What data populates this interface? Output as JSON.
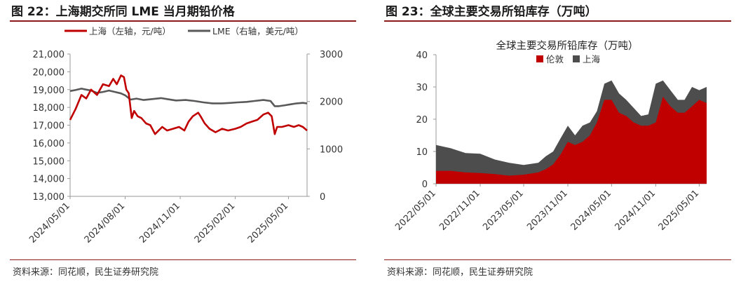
{
  "left": {
    "title": "图 22：上海期交所同 LME 当月期铅价格",
    "source": "资料来源：同花顺，民生证券研究院"
  },
  "right": {
    "title": "图 23：全球主要交易所铅库存（万吨）",
    "source": "资料来源：同花顺，民生证券研究院"
  },
  "colors": {
    "shanghai": "#c00000",
    "lme": "#595959",
    "london": "#c00000",
    "shfe_stock": "#4d4d4d",
    "rule": "#8b1a1a"
  },
  "chart_data": [
    {
      "type": "line",
      "legend_placement": "top",
      "grid": false,
      "yleft": {
        "ticks": [
          "21,000",
          "20,000",
          "19,000",
          "18,000",
          "17,000",
          "16,000",
          "15,000",
          "14,000",
          "13,000"
        ],
        "range": [
          13000,
          21000
        ]
      },
      "yright": {
        "ticks": [
          "3000",
          "2000",
          "1000",
          "0"
        ],
        "range": [
          0,
          3000
        ]
      },
      "xticks": [
        "2024/05/01",
        "2024/08/01",
        "2024/11/01",
        "2025/02/01",
        "2025/05/01"
      ],
      "xrange": [
        "2024/05/01",
        "2025/06/01"
      ],
      "series": [
        {
          "name": "上海（左轴，元/吨）",
          "axis": "left",
          "points": [
            [
              "2024/05/01",
              17300
            ],
            [
              "2024/05/10",
              17900
            ],
            [
              "2024/05/20",
              18700
            ],
            [
              "2024/05/28",
              18500
            ],
            [
              "2024/06/05",
              19000
            ],
            [
              "2024/06/15",
              18700
            ],
            [
              "2024/06/25",
              19300
            ],
            [
              "2024/07/05",
              19200
            ],
            [
              "2024/07/12",
              19600
            ],
            [
              "2024/07/18",
              19300
            ],
            [
              "2024/07/25",
              19800
            ],
            [
              "2024/07/30",
              19700
            ],
            [
              "2024/08/03",
              19000
            ],
            [
              "2024/08/07",
              18800
            ],
            [
              "2024/08/12",
              17400
            ],
            [
              "2024/08/16",
              17800
            ],
            [
              "2024/08/22",
              17500
            ],
            [
              "2024/08/28",
              17400
            ],
            [
              "2024/09/05",
              17100
            ],
            [
              "2024/09/12",
              17000
            ],
            [
              "2024/09/20",
              16500
            ],
            [
              "2024/09/26",
              16700
            ],
            [
              "2024/10/02",
              16900
            ],
            [
              "2024/10/10",
              16700
            ],
            [
              "2024/10/20",
              16800
            ],
            [
              "2024/10/30",
              16900
            ],
            [
              "2024/11/08",
              16700
            ],
            [
              "2024/11/15",
              17200
            ],
            [
              "2024/11/22",
              17500
            ],
            [
              "2024/12/01",
              17700
            ],
            [
              "2024/12/05",
              17500
            ],
            [
              "2024/12/12",
              17100
            ],
            [
              "2024/12/20",
              16800
            ],
            [
              "2024/12/30",
              16600
            ],
            [
              "2025/01/10",
              16800
            ],
            [
              "2025/01/20",
              16700
            ],
            [
              "2025/02/01",
              16800
            ],
            [
              "2025/02/10",
              16900
            ],
            [
              "2025/02/20",
              17100
            ],
            [
              "2025/03/01",
              17200
            ],
            [
              "2025/03/10",
              17300
            ],
            [
              "2025/03/20",
              17600
            ],
            [
              "2025/03/28",
              17700
            ],
            [
              "2025/04/03",
              17500
            ],
            [
              "2025/04/08",
              16500
            ],
            [
              "2025/04/12",
              16900
            ],
            [
              "2025/04/20",
              16900
            ],
            [
              "2025/05/01",
              17000
            ],
            [
              "2025/05/10",
              16900
            ],
            [
              "2025/05/18",
              17000
            ],
            [
              "2025/05/25",
              16900
            ],
            [
              "2025/06/01",
              16700
            ]
          ]
        },
        {
          "name": "LME（右轴，美元/吨）",
          "axis": "right",
          "points": [
            [
              "2024/05/01",
              2220
            ],
            [
              "2024/05/10",
              2240
            ],
            [
              "2024/05/20",
              2270
            ],
            [
              "2024/05/28",
              2250
            ],
            [
              "2024/06/05",
              2230
            ],
            [
              "2024/06/15",
              2180
            ],
            [
              "2024/06/25",
              2200
            ],
            [
              "2024/07/05",
              2230
            ],
            [
              "2024/07/15",
              2200
            ],
            [
              "2024/07/25",
              2170
            ],
            [
              "2024/08/01",
              2130
            ],
            [
              "2024/08/10",
              2040
            ],
            [
              "2024/08/20",
              2060
            ],
            [
              "2024/09/01",
              2030
            ],
            [
              "2024/09/15",
              2050
            ],
            [
              "2024/09/30",
              2070
            ],
            [
              "2024/10/10",
              2050
            ],
            [
              "2024/10/25",
              2020
            ],
            [
              "2024/11/10",
              2030
            ],
            [
              "2024/11/25",
              2010
            ],
            [
              "2024/12/10",
              1980
            ],
            [
              "2024/12/25",
              1960
            ],
            [
              "2025/01/10",
              1960
            ],
            [
              "2025/01/25",
              1970
            ],
            [
              "2025/02/05",
              1980
            ],
            [
              "2025/02/20",
              1990
            ],
            [
              "2025/03/05",
              2010
            ],
            [
              "2025/03/20",
              2030
            ],
            [
              "2025/04/01",
              2010
            ],
            [
              "2025/04/08",
              1900
            ],
            [
              "2025/04/15",
              1900
            ],
            [
              "2025/04/25",
              1920
            ],
            [
              "2025/05/05",
              1940
            ],
            [
              "2025/05/15",
              1960
            ],
            [
              "2025/05/25",
              1970
            ],
            [
              "2025/06/01",
              1960
            ]
          ]
        }
      ]
    },
    {
      "type": "area",
      "title": "全球主要交易所铅库存（万吨）",
      "legend_placement": "top",
      "grid": false,
      "stacked": true,
      "yticks": [
        "40",
        "30",
        "20",
        "10",
        "0"
      ],
      "yrange": [
        0,
        40
      ],
      "xticks": [
        "2022/05/01",
        "2022/11/01",
        "2023/05/01",
        "2023/11/01",
        "2024/05/01",
        "2024/11/01",
        "2025/05/01"
      ],
      "xrange": [
        "2022/05/01",
        "2025/06/01"
      ],
      "x": [
        "2022/05/01",
        "2022/07/01",
        "2022/09/01",
        "2022/11/01",
        "2023/01/01",
        "2023/03/01",
        "2023/05/01",
        "2023/07/01",
        "2023/08/01",
        "2023/09/01",
        "2023/10/01",
        "2023/11/01",
        "2023/12/01",
        "2024/01/01",
        "2024/02/01",
        "2024/03/01",
        "2024/04/01",
        "2024/05/01",
        "2024/06/01",
        "2024/07/01",
        "2024/08/01",
        "2024/09/01",
        "2024/10/01",
        "2024/11/01",
        "2024/12/01",
        "2025/01/01",
        "2025/02/01",
        "2025/03/01",
        "2025/04/01",
        "2025/05/01",
        "2025/06/01"
      ],
      "series": [
        {
          "name": "伦敦",
          "values": [
            4,
            4,
            3.5,
            3.3,
            3,
            2.5,
            2.8,
            3.5,
            4.5,
            6,
            9,
            13,
            12,
            13,
            15,
            19,
            26,
            26,
            22,
            21,
            19,
            18,
            18,
            19,
            27,
            24,
            22,
            22,
            24,
            26,
            25
          ]
        },
        {
          "name": "上海",
          "values": [
            8,
            7,
            6,
            6,
            4.5,
            4,
            3,
            3,
            4,
            4,
            5,
            5,
            3,
            5,
            4,
            3.5,
            5,
            6,
            6,
            5,
            4.5,
            3,
            3.5,
            12,
            5,
            5,
            4,
            4,
            6,
            3,
            5
          ]
        }
      ]
    }
  ]
}
